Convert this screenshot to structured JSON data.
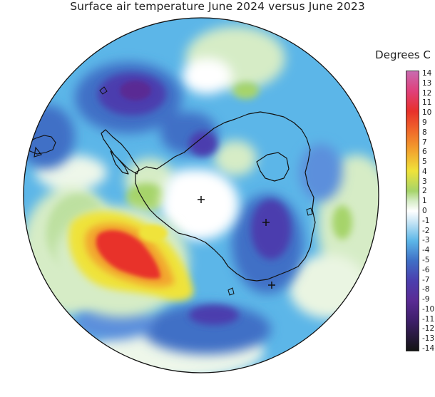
{
  "title": "Surface air temperature June 2024 versus June 2023",
  "legend": {
    "title": "Degrees C",
    "ticks": [
      "14",
      "13",
      "12",
      "11",
      "10",
      "9",
      "8",
      "7",
      "6",
      "5",
      "4",
      "3",
      "2",
      "1",
      "0",
      "-1",
      "-2",
      "-3",
      "-4",
      "-5",
      "-6",
      "-7",
      "-8",
      "-9",
      "-10",
      "-11",
      "-12",
      "-13",
      "-14"
    ],
    "range": [
      -14,
      14
    ],
    "colors": [
      {
        "value": 14,
        "color": "#c86bb0"
      },
      {
        "value": 12,
        "color": "#e0407a"
      },
      {
        "value": 10,
        "color": "#e8302a"
      },
      {
        "value": 8,
        "color": "#f06a2a"
      },
      {
        "value": 6,
        "color": "#f2a52e"
      },
      {
        "value": 4,
        "color": "#efe33a"
      },
      {
        "value": 2,
        "color": "#a6d46a"
      },
      {
        "value": 1,
        "color": "#d6ecc6"
      },
      {
        "value": 0,
        "color": "#ffffff"
      },
      {
        "value": -1,
        "color": "#cde8f6"
      },
      {
        "value": -3,
        "color": "#5cb6e8"
      },
      {
        "value": -5,
        "color": "#3f6fc6"
      },
      {
        "value": -7,
        "color": "#4b3eae"
      },
      {
        "value": -9,
        "color": "#5a2b94"
      },
      {
        "value": -11,
        "color": "#3e1f6a"
      },
      {
        "value": -14,
        "color": "#141414"
      }
    ]
  },
  "map": {
    "projection": "south-polar-stereographic",
    "background_color": "#5cb6e8",
    "anomaly_regions": [
      {
        "name": "warm-anomaly-southeast-pacific",
        "value": 10
      },
      {
        "name": "cold-anomaly-south-atlantic",
        "value": -9
      },
      {
        "name": "cold-anomaly-weddell-sector",
        "value": -7
      },
      {
        "name": "cold-anomaly-east-antarctica",
        "value": -7
      },
      {
        "name": "neutral-polar-cap",
        "value": 0
      }
    ],
    "markers": [
      "plus-marker",
      "plus-marker",
      "plus-marker"
    ]
  }
}
